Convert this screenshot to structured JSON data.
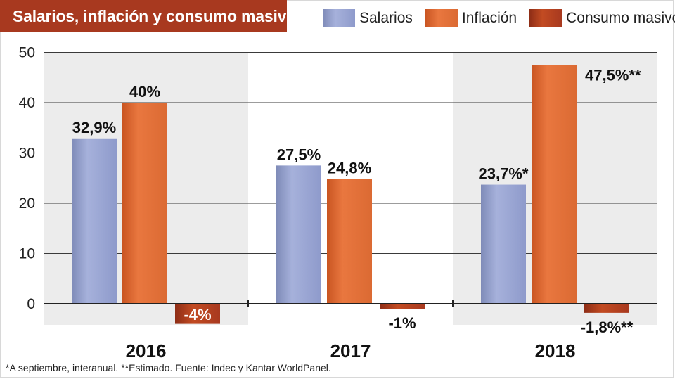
{
  "title": "Salarios, inflación y consumo masivo",
  "legend": [
    {
      "name": "Salarios",
      "color": "#9aa6d0"
    },
    {
      "name": "Inflación",
      "color": "#e2703c"
    },
    {
      "name": "Consumo masivo",
      "color": "#a8391f"
    }
  ],
  "footnote": "*A septiembre, interanual. **Estimado. Fuente: Indec y Kantar WorldPanel.",
  "chart_data": {
    "type": "bar",
    "title": "Salarios, inflación y consumo masivo",
    "categories": [
      "2016",
      "2017",
      "2018"
    ],
    "series": [
      {
        "name": "Salarios",
        "values": [
          32.9,
          27.5,
          23.7
        ],
        "labels": [
          "32,9%",
          "27,5%",
          "23,7%*"
        ]
      },
      {
        "name": "Inflación",
        "values": [
          40,
          24.8,
          47.5
        ],
        "labels": [
          "40%",
          "24,8%",
          "47,5%**"
        ]
      },
      {
        "name": "Consumo masivo",
        "values": [
          -4,
          -1,
          -1.8
        ],
        "labels": [
          "-4%",
          "-1%",
          "-1,8%**"
        ]
      }
    ],
    "yticks": [
      0,
      10,
      20,
      30,
      40,
      50
    ],
    "ylim": [
      -6,
      50
    ],
    "xlabel": "",
    "ylabel": ""
  }
}
